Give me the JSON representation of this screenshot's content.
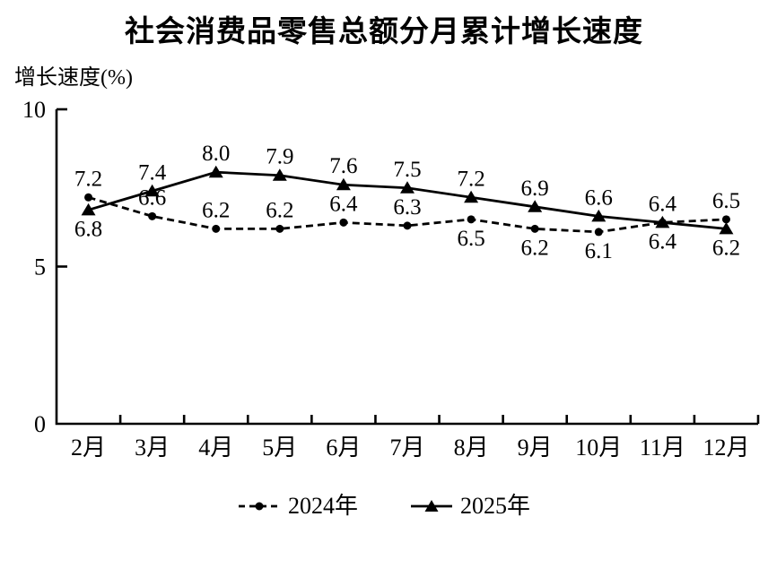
{
  "chart_data": {
    "type": "line",
    "title": "社会消费品零售总额分月累计增长速度",
    "ylabel": "增长速度(%)",
    "xlabel": "",
    "categories": [
      "2月",
      "3月",
      "4月",
      "5月",
      "6月",
      "7月",
      "8月",
      "9月",
      "10月",
      "11月",
      "12月"
    ],
    "series": [
      {
        "name": "2024年",
        "line_style": "dashed",
        "marker": "circle",
        "color": "#000000",
        "values": [
          7.2,
          6.6,
          6.2,
          6.2,
          6.4,
          6.3,
          6.5,
          6.2,
          6.1,
          6.4,
          6.5
        ],
        "label_pos": [
          "above",
          "above",
          "above",
          "above",
          "above",
          "above",
          "below",
          "below",
          "below",
          "below",
          "above"
        ]
      },
      {
        "name": "2025年",
        "line_style": "solid",
        "marker": "triangle",
        "color": "#000000",
        "values": [
          6.8,
          7.4,
          8.0,
          7.9,
          7.6,
          7.5,
          7.2,
          6.9,
          6.6,
          6.4,
          6.2
        ],
        "label_pos": [
          "below",
          "above",
          "above",
          "above",
          "above",
          "above",
          "above",
          "above",
          "above",
          "above",
          "below"
        ]
      }
    ],
    "ylim": [
      0,
      10
    ],
    "yticks": [
      0,
      5,
      10
    ],
    "grid": false,
    "data_labels": true,
    "legend_position": "bottom",
    "axis_color": "#000000",
    "background_color": "#ffffff"
  }
}
